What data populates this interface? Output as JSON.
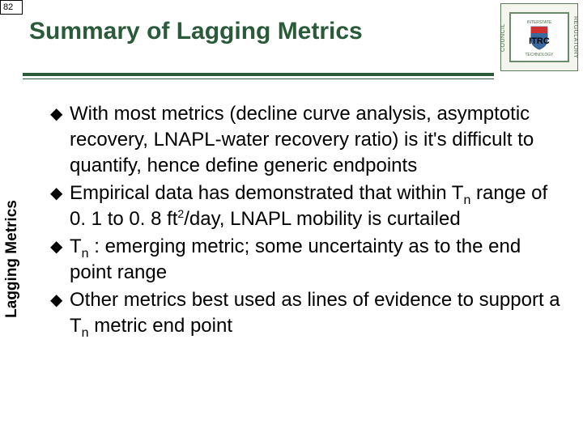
{
  "page_number": "82",
  "title": "Summary of Lagging Metrics",
  "side_tab": "Lagging Metrics",
  "logo": {
    "acronym": "ITRC",
    "left_text": "COUNCIL",
    "right_text": "REGULATORY",
    "top_text": "INTERSTATE",
    "bottom_text": "TECHNOLOGY"
  },
  "colors": {
    "heading": "#2a5a3a",
    "rule": "#2a5a3a",
    "text": "#000000",
    "logo_border": "#6a8a6a",
    "logo_badge": "#3a6aa0"
  },
  "bullets": [
    {
      "html": "With most metrics (decline curve analysis, asymptotic recovery, LNAPL-water recovery ratio) is it's difficult to quantify, hence define generic endpoints"
    },
    {
      "html": "Empirical data has demonstrated that within T<sub>n</sub> range of 0. 1 to 0. 8 ft<sup>2</sup>/day, LNAPL mobility is curtailed"
    },
    {
      "html": "T<sub>n</sub> : emerging metric; some uncertainty as to the end point range"
    },
    {
      "html": "Other metrics best used as lines of evidence to support a T<sub>n</sub> metric end point"
    }
  ],
  "typography": {
    "title_fontsize": 30,
    "body_fontsize": 24,
    "line_height": 32,
    "side_tab_fontsize": 19
  }
}
